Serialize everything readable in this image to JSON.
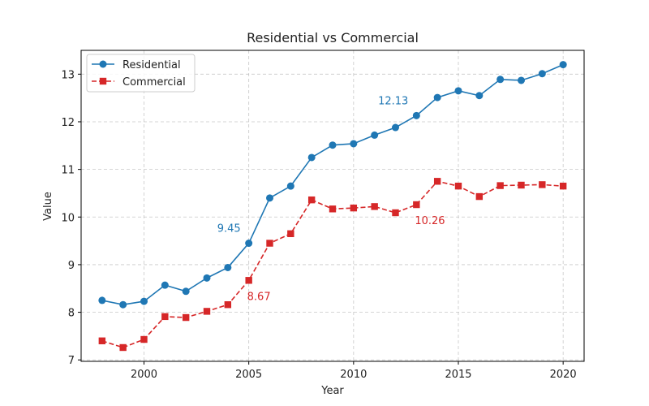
{
  "chart_data": {
    "type": "line",
    "title": "Residential vs Commercial",
    "xlabel": "Year",
    "ylabel": "Value",
    "xlim": [
      1997,
      2021
    ],
    "ylim": [
      6.97,
      13.5
    ],
    "xticks": [
      2000,
      2005,
      2010,
      2015,
      2020
    ],
    "yticks": [
      7,
      8,
      9,
      10,
      11,
      12,
      13
    ],
    "grid": true,
    "legend": "top-left",
    "x": [
      1998,
      1999,
      2000,
      2001,
      2002,
      2003,
      2004,
      2005,
      2006,
      2007,
      2008,
      2009,
      2010,
      2011,
      2012,
      2013,
      2014,
      2015,
      2016,
      2017,
      2018,
      2019,
      2020
    ],
    "series": [
      {
        "name": "Residential",
        "color": "#1f77b4",
        "marker": "circle",
        "linestyle": "solid",
        "values": [
          8.25,
          8.16,
          8.23,
          8.57,
          8.44,
          8.72,
          8.94,
          9.45,
          10.4,
          10.65,
          11.25,
          11.51,
          11.54,
          11.72,
          11.88,
          12.13,
          12.51,
          12.65,
          12.55,
          12.89,
          12.87,
          13.01,
          13.2
        ]
      },
      {
        "name": "Commercial",
        "color": "#d62728",
        "marker": "square",
        "linestyle": "dashed",
        "values": [
          7.4,
          7.26,
          7.43,
          7.91,
          7.89,
          8.02,
          8.16,
          8.67,
          9.45,
          9.65,
          10.36,
          10.17,
          10.19,
          10.22,
          10.09,
          10.26,
          10.75,
          10.65,
          10.43,
          10.66,
          10.67,
          10.68,
          10.65
        ]
      }
    ],
    "annotations": [
      {
        "text": "9.45",
        "series": 0,
        "x": 2005,
        "y": 9.45,
        "placement": "above-left"
      },
      {
        "text": "12.13",
        "series": 0,
        "x": 2013,
        "y": 12.13,
        "placement": "above-left"
      },
      {
        "text": "8.67",
        "series": 1,
        "x": 2005,
        "y": 8.67,
        "placement": "below-right"
      },
      {
        "text": "10.26",
        "series": 1,
        "x": 2013,
        "y": 10.26,
        "placement": "below-right"
      }
    ]
  }
}
